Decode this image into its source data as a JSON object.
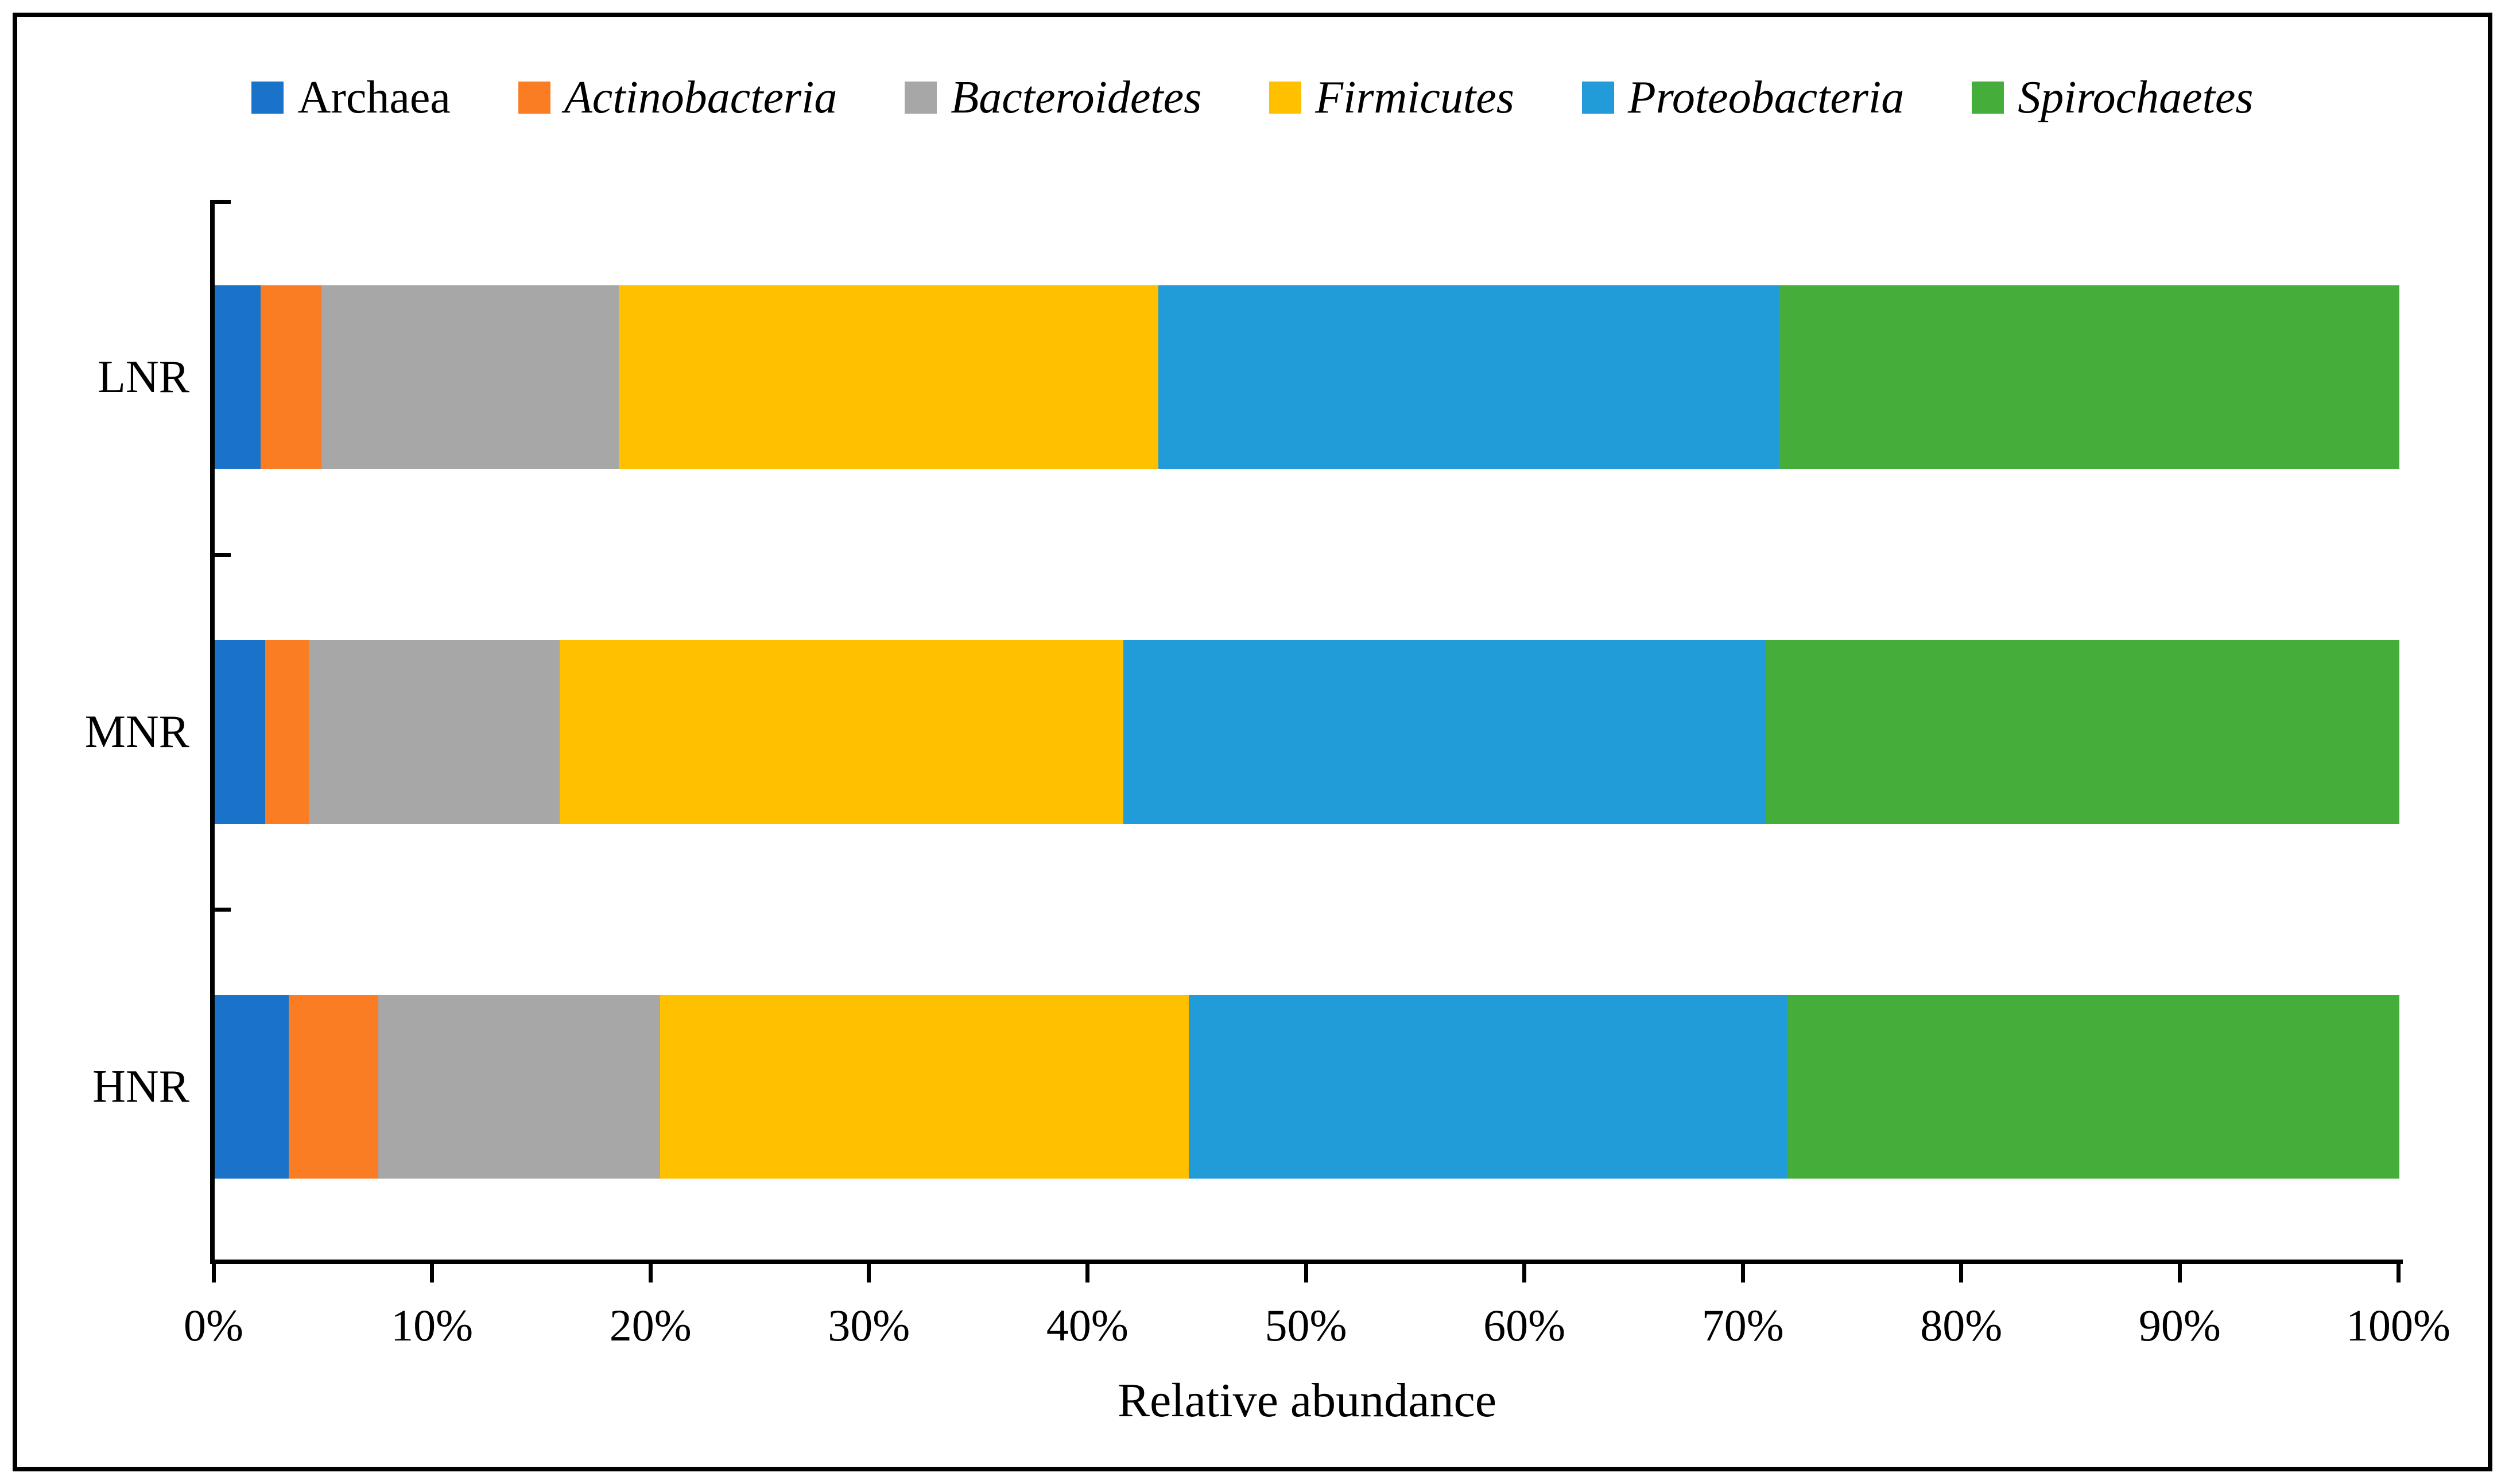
{
  "chart_data": {
    "type": "bar",
    "orientation": "horizontal",
    "stacked": true,
    "title": "",
    "xlabel": "Relative abundance",
    "ylabel": "",
    "categories": [
      "LNR",
      "MNR",
      "HNR"
    ],
    "series": [
      {
        "name": "Archaea",
        "italic": false,
        "color": "#1B73C9",
        "values": [
          2.1,
          2.3,
          3.4
        ]
      },
      {
        "name": "Actinobacteria",
        "italic": true,
        "color": "#FB7D23",
        "values": [
          2.8,
          2.0,
          4.1
        ]
      },
      {
        "name": "Bacteroidetes",
        "italic": true,
        "color": "#A7A7A7",
        "values": [
          13.6,
          11.5,
          12.9
        ]
      },
      {
        "name": "Firmicutes",
        "italic": true,
        "color": "#FFC000",
        "values": [
          24.7,
          25.8,
          24.2
        ]
      },
      {
        "name": "Proteobacteria",
        "italic": true,
        "color": "#219CD8",
        "values": [
          28.4,
          29.4,
          27.4
        ]
      },
      {
        "name": "Spirochaetes",
        "italic": true,
        "color": "#45AD3A",
        "values": [
          28.4,
          29.0,
          28.0
        ]
      }
    ],
    "xlim": [
      0,
      100
    ],
    "x_tick_labels": [
      "0%",
      "10%",
      "20%",
      "30%",
      "40%",
      "50%",
      "60%",
      "70%",
      "80%",
      "90%",
      "100%"
    ],
    "legend_position": "top",
    "grid": false
  }
}
